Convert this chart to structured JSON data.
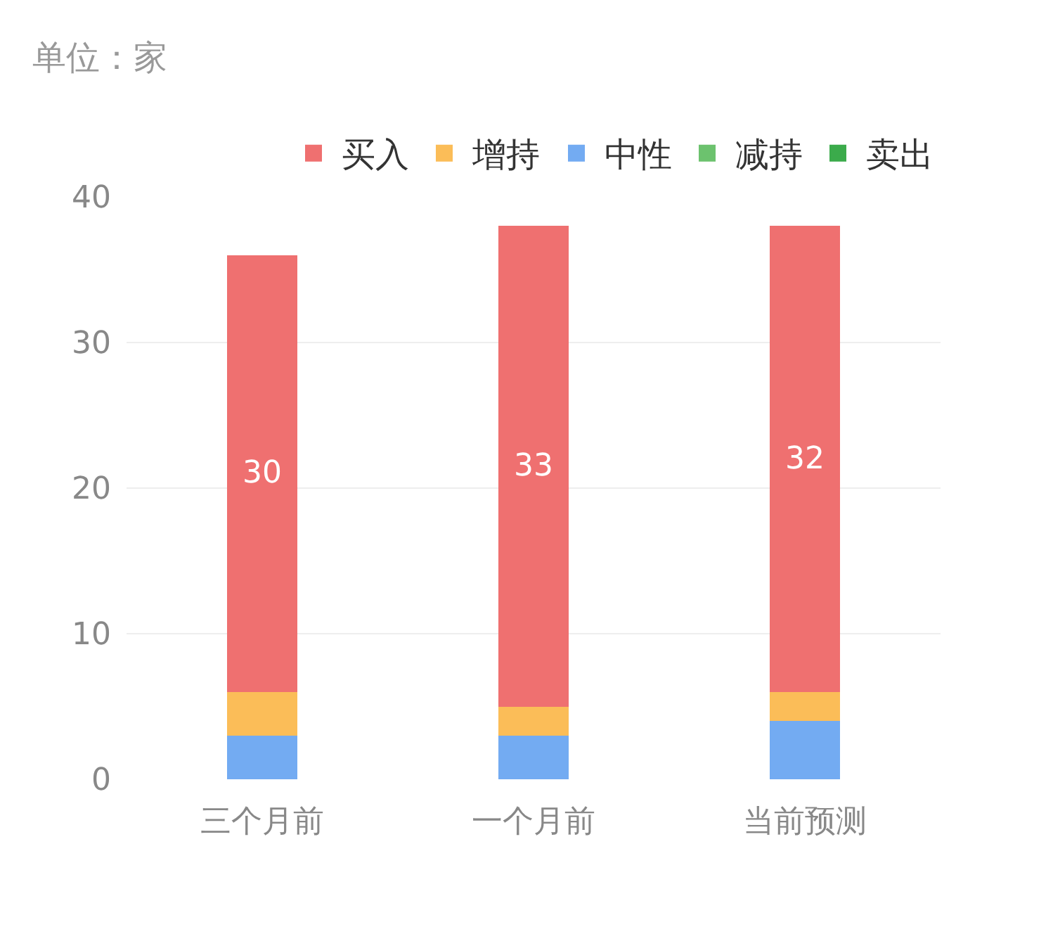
{
  "chart_data": {
    "type": "bar",
    "stacked": true,
    "categories": [
      "三个月前",
      "一个月前",
      "当前预测"
    ],
    "series": [
      {
        "name": "卖出",
        "color": "#3bab4b",
        "values": [
          0,
          0,
          0
        ]
      },
      {
        "name": "减持",
        "color": "#6cc26e",
        "values": [
          0,
          0,
          0
        ]
      },
      {
        "name": "中性",
        "color": "#73abf2",
        "values": [
          3,
          3,
          4
        ]
      },
      {
        "name": "增持",
        "color": "#fbbd58",
        "values": [
          3,
          2,
          2
        ]
      },
      {
        "name": "买入",
        "color": "#ef7070",
        "values": [
          30,
          33,
          32
        ],
        "value_labels": [
          "30",
          "33",
          "32"
        ]
      }
    ],
    "ylim": [
      0,
      40
    ],
    "yticks": [
      0,
      10,
      20,
      30,
      40
    ],
    "grid": "y",
    "legend": "top right",
    "annotations": [
      "单位：家"
    ]
  }
}
